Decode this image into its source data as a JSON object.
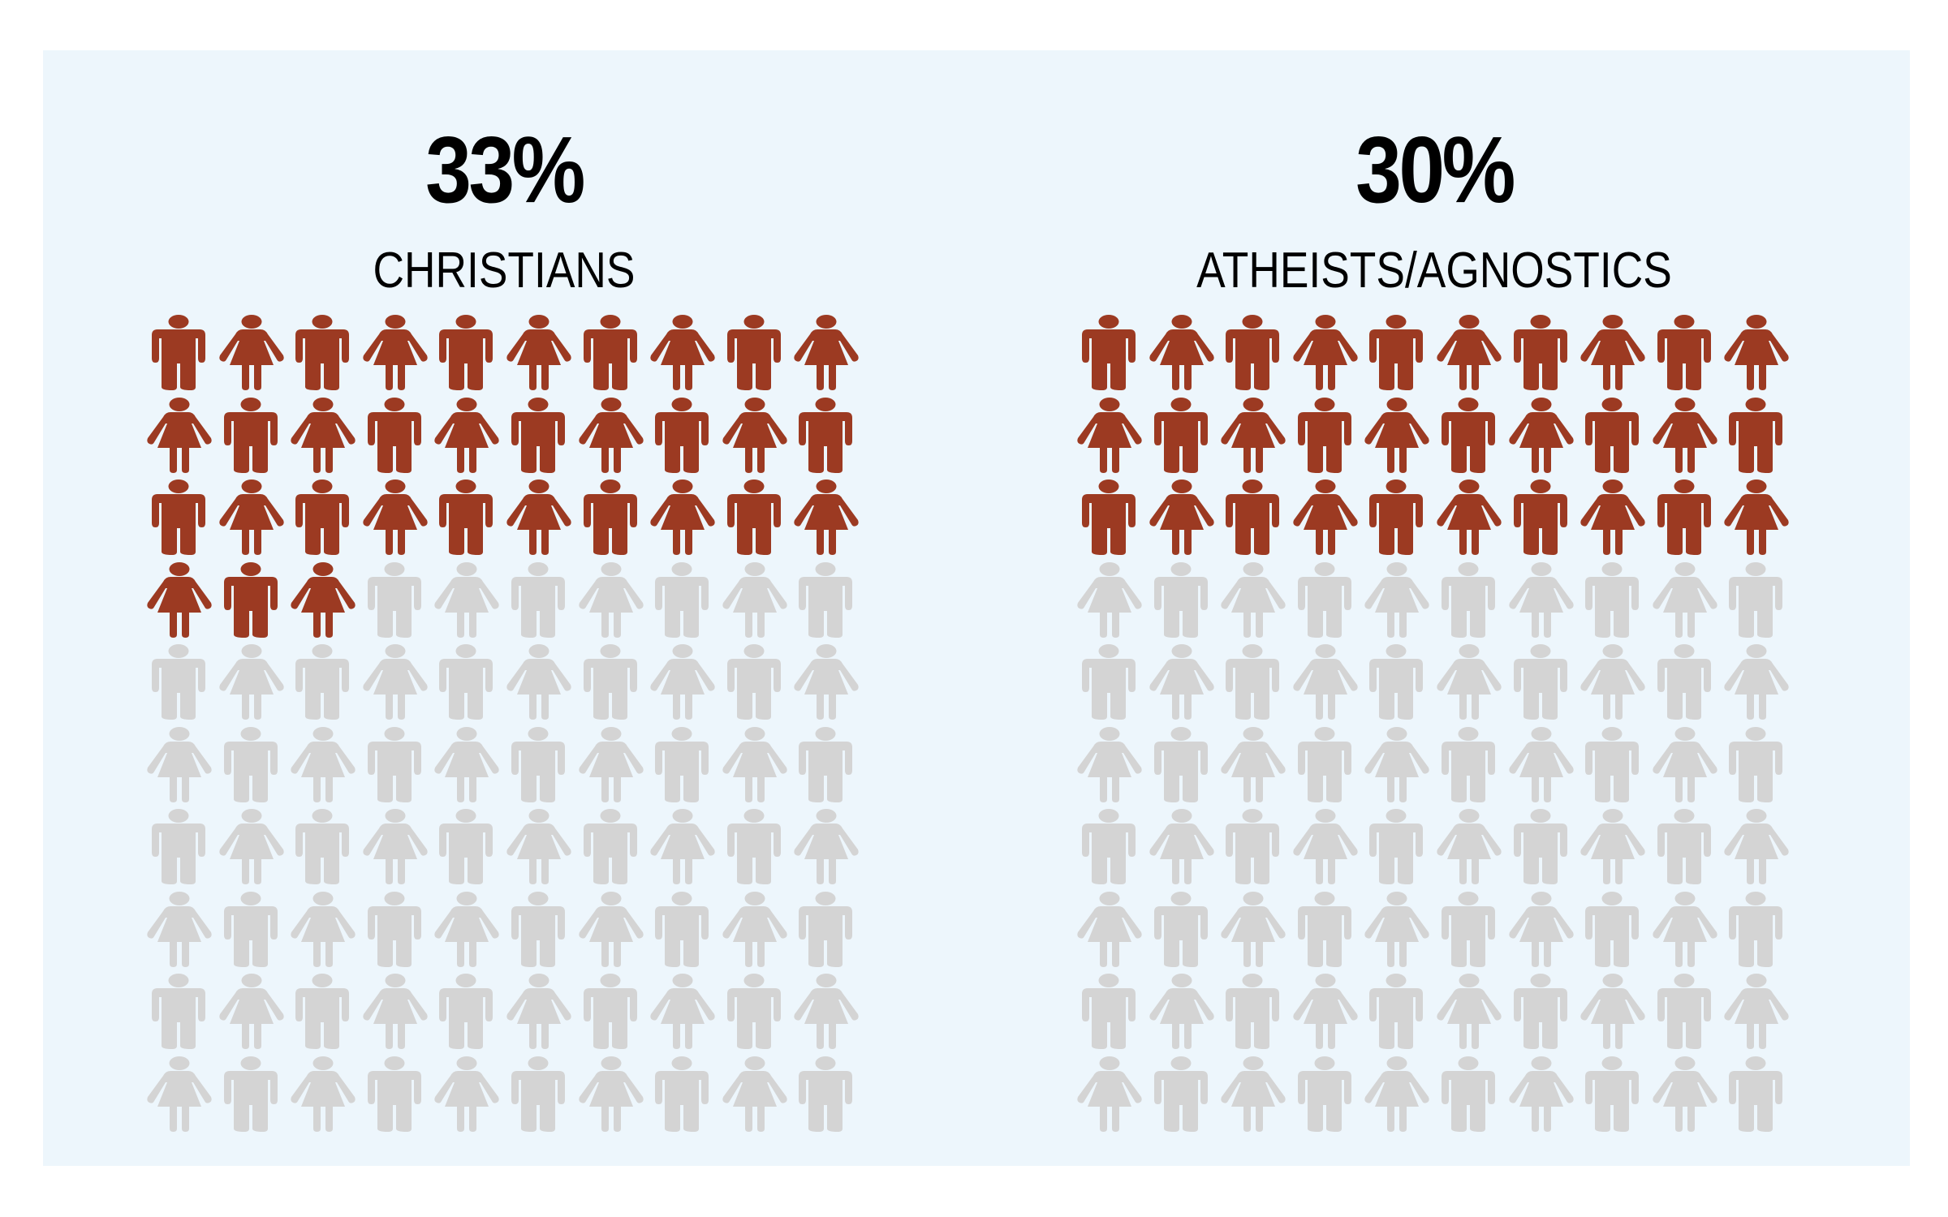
{
  "colors": {
    "background": "#ffffff",
    "panel": "#edf6fc",
    "filled": "#9c3a22",
    "empty": "#d4d4d4",
    "text": "#000000"
  },
  "charts": [
    {
      "percent_label": "33%",
      "category_label": "CHRISTIANS",
      "filled_count": 33,
      "total": 100
    },
    {
      "percent_label": "30%",
      "category_label": "ATHEISTS/AGNOSTICS",
      "filled_count": 30,
      "total": 100
    }
  ],
  "grid": {
    "rows": 10,
    "cols": 10,
    "pattern": "alternating man/woman; odd rows start with man, even rows start with woman",
    "icons": [
      "man-icon",
      "woman-icon"
    ]
  },
  "chart_data": {
    "type": "pictogram",
    "title": "",
    "categories": [
      "CHRISTIANS",
      "ATHEISTS/AGNOSTICS"
    ],
    "values": [
      33,
      30
    ],
    "unit": "%",
    "grid": "10x10 people icons, filled icons = percentage",
    "series": [
      {
        "name": "CHRISTIANS",
        "values": [
          33
        ]
      },
      {
        "name": "ATHEISTS/AGNOSTICS",
        "values": [
          30
        ]
      }
    ],
    "filled_color": "#9c3a22",
    "unfilled_color": "#d4d4d4",
    "legend": "none",
    "grid_lines": false
  }
}
